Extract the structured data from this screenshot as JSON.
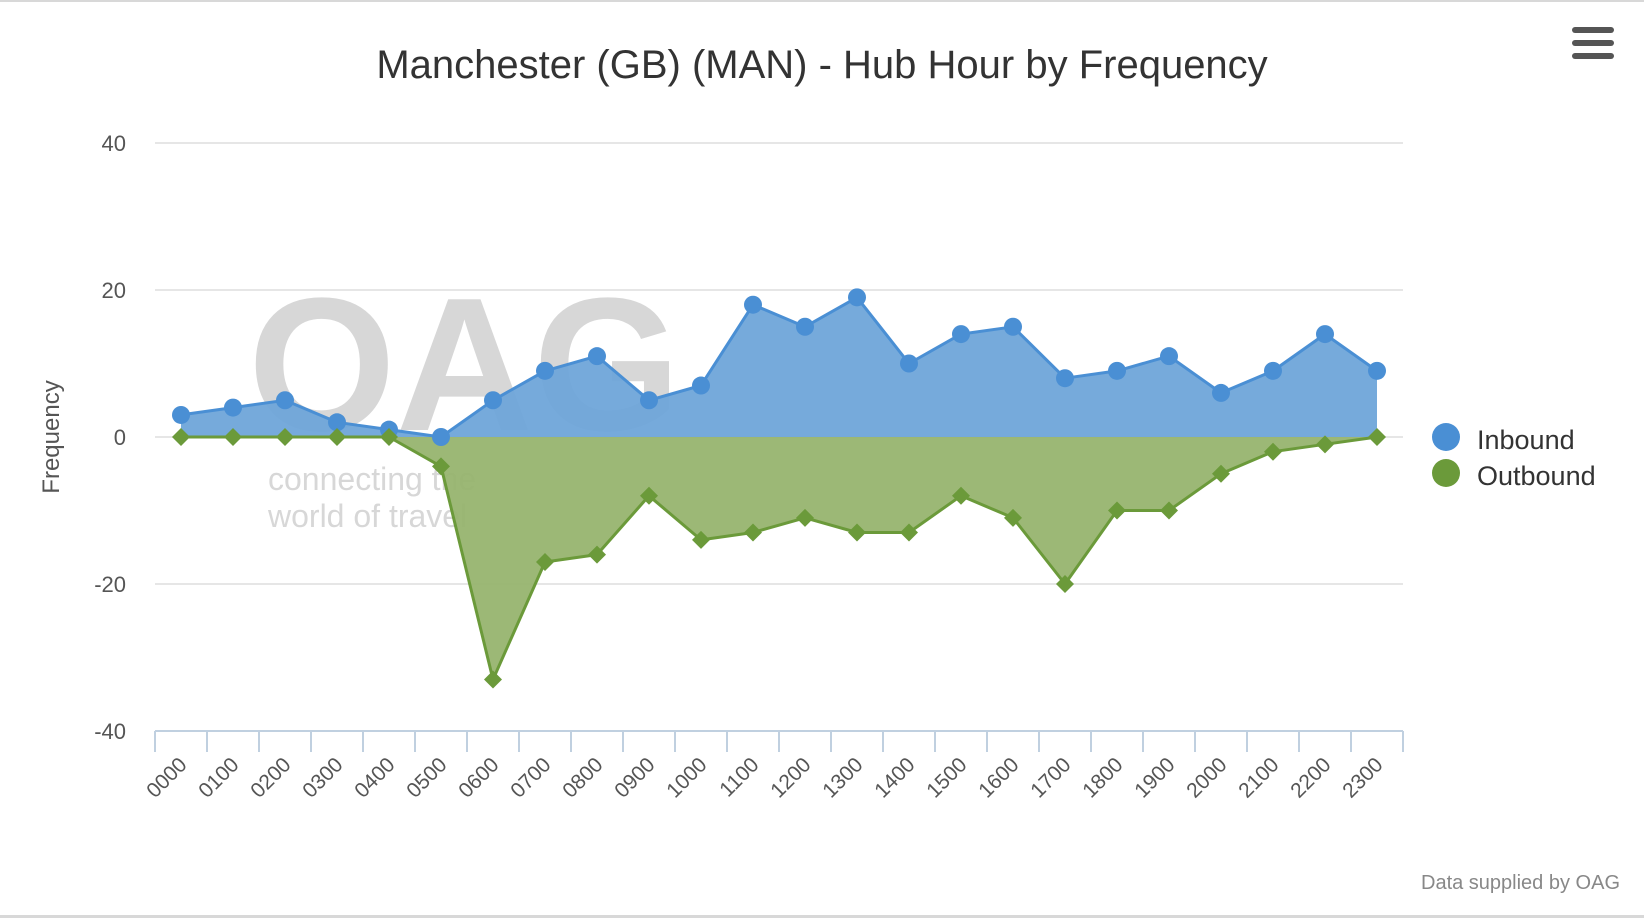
{
  "chart_data": {
    "type": "area",
    "title": "Manchester (GB) (MAN) - Hub Hour by Frequency",
    "xlabel": "",
    "ylabel": "Frequency",
    "ylim": [
      -40,
      40
    ],
    "yticks": [
      40,
      20,
      0,
      -20,
      -40
    ],
    "grid": true,
    "legend_position": "right",
    "categories": [
      "0000",
      "0100",
      "0200",
      "0300",
      "0400",
      "0500",
      "0600",
      "0700",
      "0800",
      "0900",
      "1000",
      "1100",
      "1200",
      "1300",
      "1400",
      "1500",
      "1600",
      "1700",
      "1800",
      "1900",
      "2000",
      "2100",
      "2200",
      "2300"
    ],
    "series": [
      {
        "name": "Inbound",
        "color": "#4a8fd4",
        "values": [
          3,
          4,
          5,
          2,
          1,
          0,
          5,
          9,
          11,
          5,
          7,
          18,
          15,
          19,
          10,
          14,
          15,
          8,
          9,
          11,
          6,
          9,
          14,
          9
        ]
      },
      {
        "name": "Outbound",
        "color": "#6b9a3a",
        "values": [
          0,
          0,
          0,
          0,
          0,
          -4,
          -33,
          -17,
          -16,
          -8,
          -14,
          -13,
          -11,
          -13,
          -13,
          -8,
          -11,
          -20,
          -10,
          -10,
          -5,
          -2,
          -1,
          0
        ]
      }
    ]
  },
  "watermark": {
    "logo": "OAG",
    "tagline_line1": "connecting the",
    "tagline_line2": "world of travel"
  },
  "credit": "Data supplied by OAG",
  "menu_icon": "hamburger-menu-icon"
}
